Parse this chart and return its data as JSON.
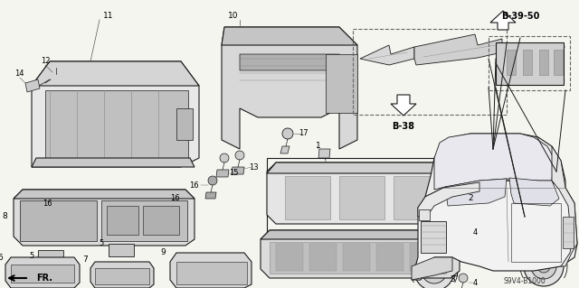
{
  "bg_color": "#f5f5f0",
  "diagram_code": "S9V4-B1000",
  "ref_b38": "B-38",
  "ref_b3950": "B-39-50",
  "fr_label": "FR.",
  "figsize": [
    6.4,
    3.19
  ],
  "dpi": 100,
  "lc": "#1a1a1a",
  "fc_light": "#e0e0e0",
  "fc_mid": "#c8c8c8",
  "fc_dark": "#b0b0b0"
}
